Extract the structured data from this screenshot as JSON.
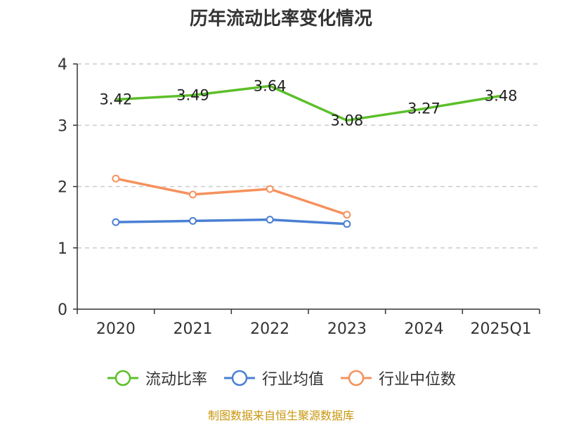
{
  "chart_data": {
    "type": "line",
    "title": "历年流动比率变化情况",
    "categories": [
      "2020",
      "2021",
      "2022",
      "2023",
      "2024",
      "2025Q1"
    ],
    "ylim": [
      0,
      4
    ],
    "yticks": [
      0,
      1,
      2,
      3,
      4
    ],
    "grid": true,
    "legend_position": "bottom",
    "series": [
      {
        "name": "流动比率",
        "color": "#5cbf2a",
        "values": [
          3.42,
          3.49,
          3.64,
          3.08,
          3.27,
          3.48
        ],
        "labels": [
          "3.42",
          "3.49",
          "3.64",
          "3.08",
          "3.27",
          "3.48"
        ],
        "markers": false
      },
      {
        "name": "行业均值",
        "color": "#4a7fd4",
        "values": [
          1.42,
          1.44,
          1.46,
          1.39,
          null,
          null
        ],
        "markers": true
      },
      {
        "name": "行业中位数",
        "color": "#f5915c",
        "values": [
          2.13,
          1.87,
          1.96,
          1.54,
          null,
          null
        ],
        "markers": true
      }
    ]
  },
  "source_note": "制图数据来自恒生聚源数据库"
}
